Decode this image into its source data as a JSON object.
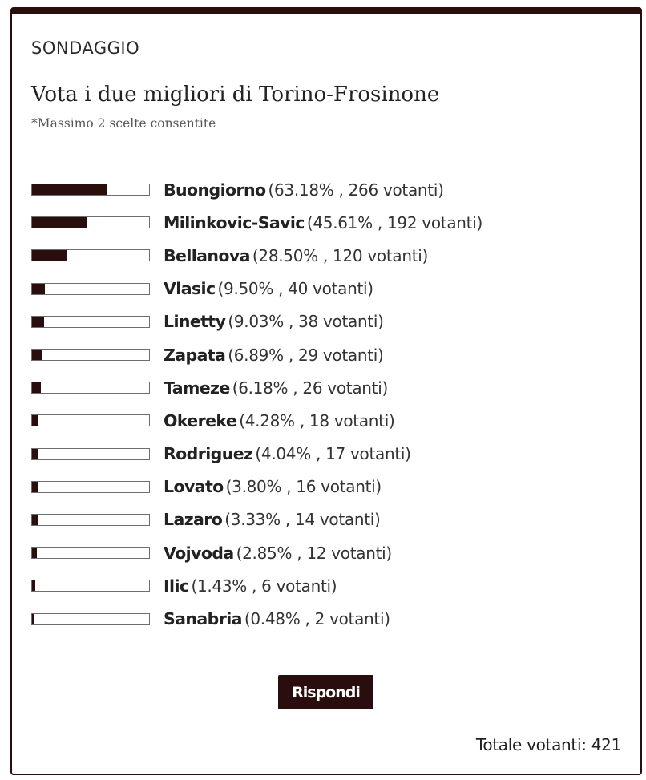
{
  "poll": {
    "kicker": "SONDAGGIO",
    "title": "Vota i due migliori di Torino-Frosinone",
    "note": "*Massimo 2 scelte consentite",
    "options": [
      {
        "name": "Buongiorno",
        "stats": "(63.18% , 266 votanti)",
        "percent": 63.18
      },
      {
        "name": "Milinkovic-Savic",
        "stats": "(45.61% , 192 votanti)",
        "percent": 45.61
      },
      {
        "name": "Bellanova",
        "stats": "(28.50% , 120 votanti)",
        "percent": 28.5
      },
      {
        "name": "Vlasic",
        "stats": "(9.50% , 40 votanti)",
        "percent": 9.5
      },
      {
        "name": "Linetty",
        "stats": "(9.03% , 38 votanti)",
        "percent": 9.03
      },
      {
        "name": "Zapata",
        "stats": "(6.89% , 29 votanti)",
        "percent": 6.89
      },
      {
        "name": "Tameze",
        "stats": "(6.18% , 26 votanti)",
        "percent": 6.18
      },
      {
        "name": "Okereke",
        "stats": "(4.28% , 18 votanti)",
        "percent": 4.28
      },
      {
        "name": "Rodriguez",
        "stats": "(4.04% , 17 votanti)",
        "percent": 4.04
      },
      {
        "name": "Lovato",
        "stats": "(3.80% , 16 votanti)",
        "percent": 3.8
      },
      {
        "name": "Lazaro",
        "stats": "(3.33% , 14 votanti)",
        "percent": 3.33
      },
      {
        "name": "Vojvoda",
        "stats": "(2.85% , 12 votanti)",
        "percent": 2.85
      },
      {
        "name": "Ilic",
        "stats": "(1.43% , 6 votanti)",
        "percent": 1.43
      },
      {
        "name": "Sanabria",
        "stats": "(0.48% , 2 votanti)",
        "percent": 0.48
      }
    ],
    "submit_label": "Rispondi",
    "total_label": "Totale votanti: 421"
  },
  "colors": {
    "accent": "#2a0d0d",
    "bar_border": "#6e6e6e"
  }
}
